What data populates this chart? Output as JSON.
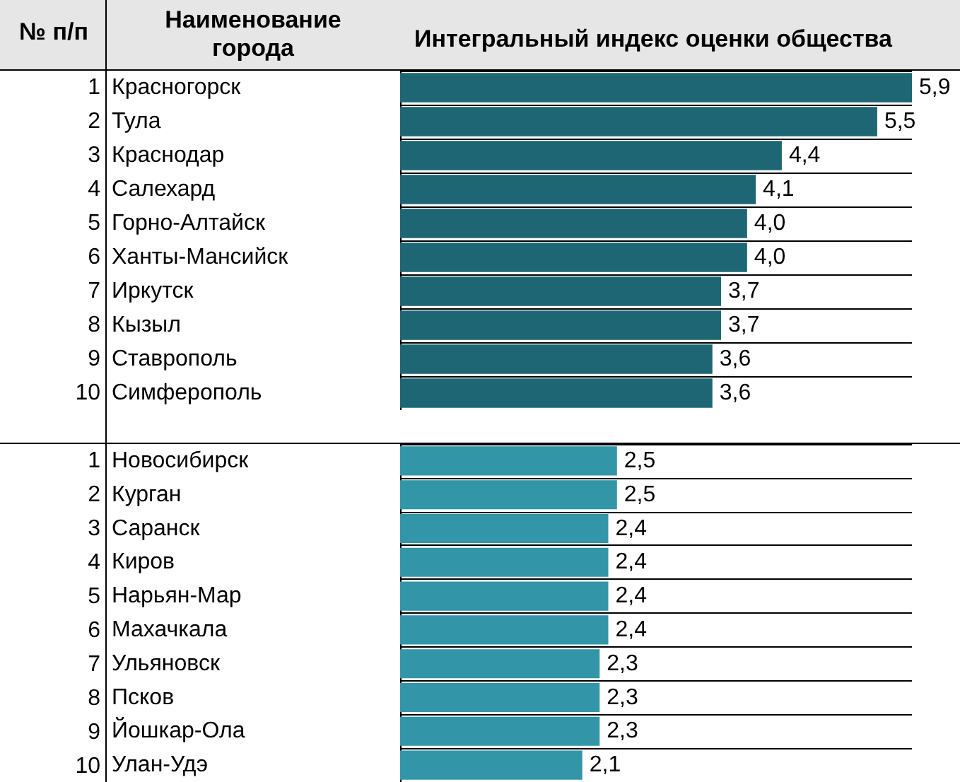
{
  "chart_data": [
    {
      "type": "bar",
      "orientation": "horizontal",
      "title": "Интегральный индекс оценки общества",
      "ylabel": "Наименование города",
      "annotations": [
        "1",
        "2",
        "3",
        "4",
        "5",
        "6",
        "7",
        "8",
        "9",
        "10",
        "№ п/п"
      ],
      "categories": [
        "Красногорск",
        "Тула",
        "Краснодар",
        "Салехард",
        "Горно-Алтайск",
        "Ханты-Мансийск",
        "Иркутск",
        "Кызыл",
        "Ставрополь",
        "Симферополь"
      ],
      "values": [
        5.9,
        5.5,
        4.4,
        4.1,
        4.0,
        4.0,
        3.7,
        3.7,
        3.6,
        3.6
      ],
      "value_labels": [
        "5,9",
        "5,5",
        "4,4",
        "4,1",
        "4,0",
        "4,0",
        "3,7",
        "3,7",
        "3,6",
        "3,6"
      ],
      "color": "#1f6674",
      "xlim": [
        0,
        5.9
      ],
      "tick_labels": "y",
      "grid": "y"
    },
    {
      "type": "bar",
      "orientation": "horizontal",
      "annotations": [
        "1",
        "2",
        "3",
        "4",
        "5",
        "6",
        "7",
        "8",
        "9",
        "10"
      ],
      "categories": [
        "Новосибирск",
        "Курган",
        "Саранск",
        "Киров",
        "Нарьян-Мар",
        "Махачкала",
        "Ульяновск",
        "Псков",
        "Йошкар-Ола",
        "Улан-Удэ"
      ],
      "values": [
        2.5,
        2.5,
        2.4,
        2.4,
        2.4,
        2.4,
        2.3,
        2.3,
        2.3,
        2.1
      ],
      "value_labels": [
        "2,5",
        "2,5",
        "2,4",
        "2,4",
        "2,4",
        "2,4",
        "2,3",
        "2,3",
        "2,3",
        "2,1"
      ],
      "color": "#3396a8",
      "xlim": [
        0,
        5.9
      ],
      "tick_labels": "y",
      "grid": "y"
    }
  ]
}
